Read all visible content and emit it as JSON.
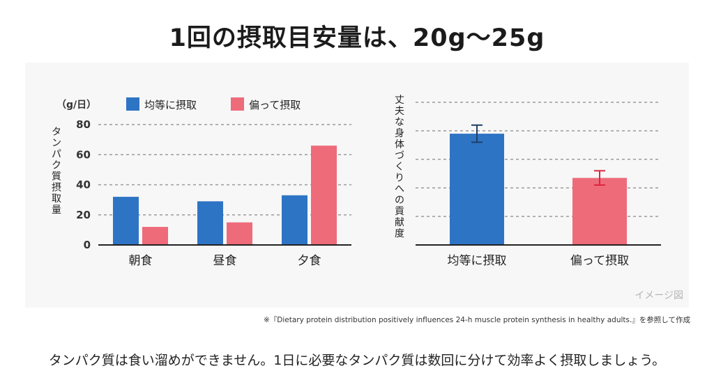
{
  "page": {
    "title": "1回の摂取目安量は、20g〜25g",
    "watermark": "イメージ図",
    "source_note": "※『Dietary protein distribution positively influences 24-h muscle protein synthesis in healthy adults.』を参照して作成",
    "footer": "タンパク質は食い溜めができません。1日に必要なタンパク質は数回に分けて効率よく摂取しましょう。"
  },
  "colors": {
    "even": "#2e74c4",
    "skewed": "#ee6b7a",
    "grid": "#9a9a9a",
    "axis": "#222222"
  },
  "chart_data": [
    {
      "type": "bar",
      "unit_label": "（g/日）",
      "ylabel": "タンパク質摂取量",
      "categories": [
        "朝食",
        "昼食",
        "夕食"
      ],
      "ylim": [
        0,
        80
      ],
      "yticks": [
        0,
        20,
        40,
        60,
        80
      ],
      "grid": true,
      "legend_position": "top",
      "series": [
        {
          "name": "均等に摂取",
          "color_key": "even",
          "values": [
            32,
            29,
            33
          ]
        },
        {
          "name": "偏って摂取",
          "color_key": "skewed",
          "values": [
            12,
            15,
            66
          ]
        }
      ]
    },
    {
      "type": "bar",
      "ylabel": "丈夫な身体づくりへの貢献度",
      "categories": [
        "均等に摂取",
        "偏って摂取"
      ],
      "ylim": [
        0,
        100
      ],
      "grid": true,
      "values": [
        78,
        47
      ],
      "errors": [
        6,
        5
      ],
      "color_keys": [
        "even",
        "skewed"
      ],
      "error_colors": [
        "#1f3f66",
        "#d9263d"
      ]
    }
  ]
}
